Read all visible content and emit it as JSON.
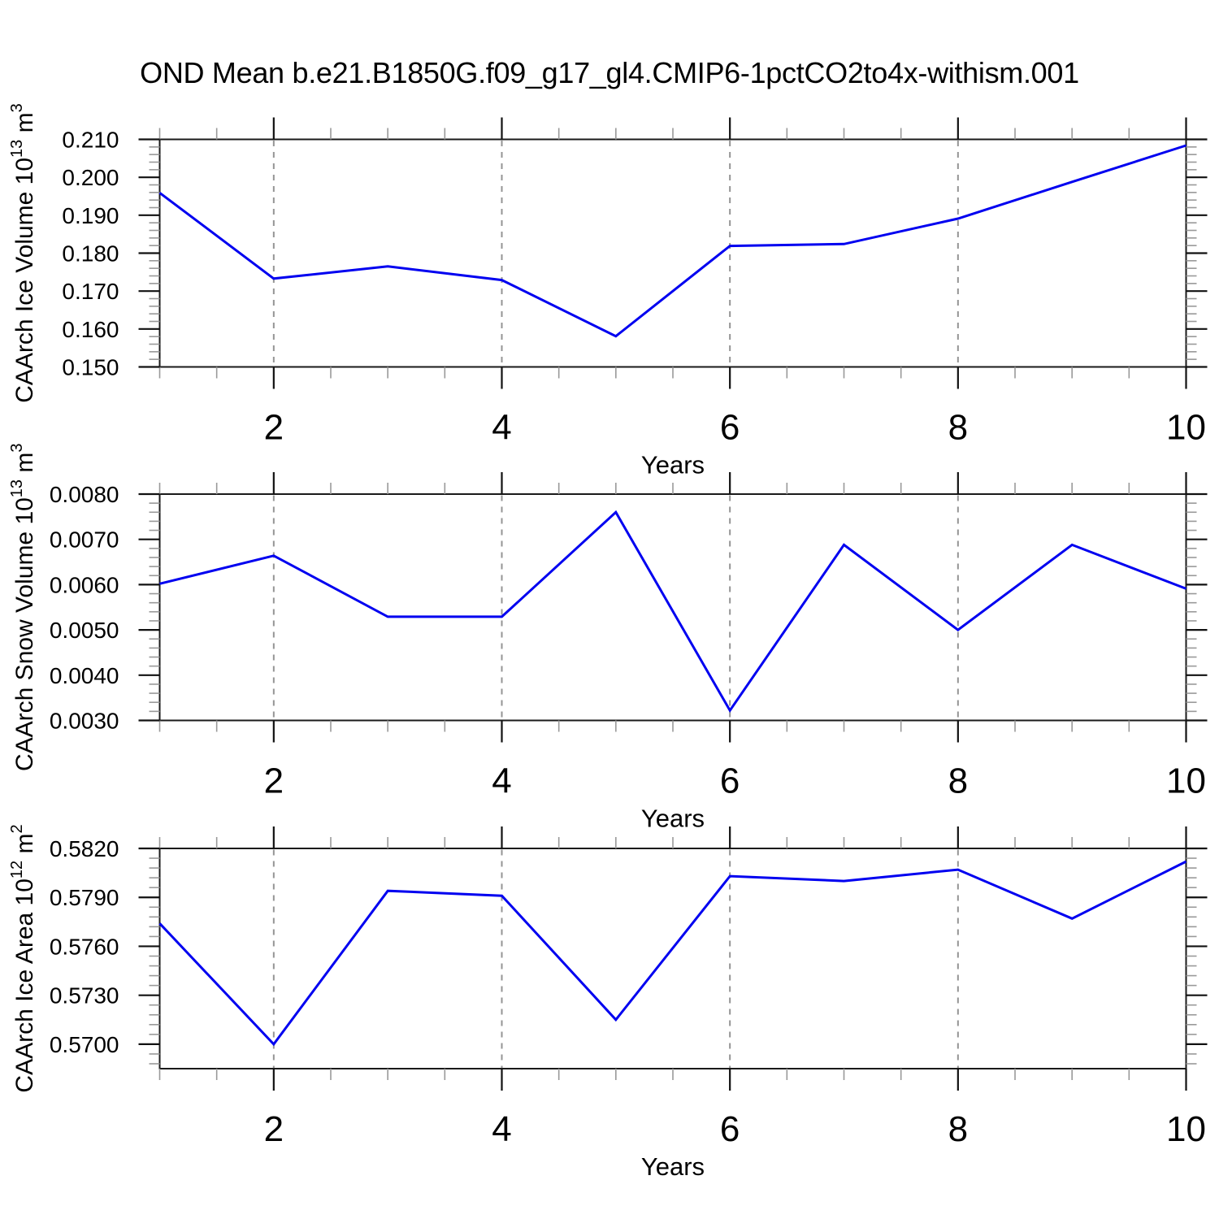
{
  "title": "OND Mean b.e21.B1850G.f09_g17_gl4.CMIP6-1pctCO2to4x-withism.001",
  "colors": {
    "line": "#0000f0",
    "grid": "#949494",
    "axis": "#1a1a1a",
    "tick_major": "#111111",
    "tick_minor": "#999999",
    "text": "#000000",
    "background": "#ffffff"
  },
  "chart_data": [
    {
      "type": "line",
      "name": "ice-volume",
      "xlabel": "Years",
      "ylabel": "CAArch Ice Volume 10^13^ m^3^",
      "x": [
        1,
        2,
        3,
        4,
        5,
        6,
        7,
        8,
        9,
        10
      ],
      "values": [
        0.1959,
        0.1733,
        0.1765,
        0.1729,
        0.1581,
        0.1819,
        0.1824,
        0.1891,
        0.1988,
        0.2084
      ],
      "xlim": [
        1,
        10
      ],
      "ylim": [
        0.15,
        0.21
      ],
      "xtick_values": [
        2,
        4,
        6,
        8,
        10
      ],
      "xtick_labels": [
        "2",
        "4",
        "6",
        "8",
        "10"
      ],
      "xtick_minor_step": 0.5,
      "ytick_values": [
        0.21,
        0.2,
        0.19,
        0.18,
        0.17,
        0.16,
        0.15
      ],
      "ytick_labels": [
        "0.210",
        "0.200",
        "0.190",
        "0.180",
        "0.170",
        "0.160",
        "0.150"
      ],
      "ytick_minor_step": 0.002,
      "gridlines_x": [
        2,
        4,
        6,
        8
      ],
      "grid": "vertical-dashed",
      "legend": "none"
    },
    {
      "type": "line",
      "name": "snow-volume",
      "xlabel": "Years",
      "ylabel": "CAArch Snow Volume 10^13^ m^3^",
      "x": [
        1,
        2,
        3,
        4,
        5,
        6,
        7,
        8,
        9,
        10
      ],
      "values": [
        0.00602,
        0.00664,
        0.00529,
        0.00529,
        0.0076,
        0.00322,
        0.00688,
        0.005,
        0.00688,
        0.00591
      ],
      "xlim": [
        1,
        10
      ],
      "ylim": [
        0.003,
        0.008
      ],
      "xtick_values": [
        2,
        4,
        6,
        8,
        10
      ],
      "xtick_labels": [
        "2",
        "4",
        "6",
        "8",
        "10"
      ],
      "xtick_minor_step": 0.5,
      "ytick_values": [
        0.008,
        0.007,
        0.006,
        0.005,
        0.004,
        0.003
      ],
      "ytick_labels": [
        "0.0080",
        "0.0070",
        "0.0060",
        "0.0050",
        "0.0040",
        "0.0030"
      ],
      "ytick_minor_step": 0.0002,
      "gridlines_x": [
        2,
        4,
        6,
        8
      ],
      "grid": "vertical-dashed",
      "legend": "none"
    },
    {
      "type": "line",
      "name": "ice-area",
      "xlabel": "Years",
      "ylabel": "CAArch Ice Area 10^12^ m^2^",
      "x": [
        1,
        2,
        3,
        4,
        5,
        6,
        7,
        8,
        9,
        10
      ],
      "values": [
        0.5774,
        0.57,
        0.5794,
        0.5791,
        0.5715,
        0.5803,
        0.58,
        0.5807,
        0.5777,
        0.5812
      ],
      "xlim": [
        1,
        10
      ],
      "ylim": [
        0.5685,
        0.582
      ],
      "xtick_values": [
        2,
        4,
        6,
        8,
        10
      ],
      "xtick_labels": [
        "2",
        "4",
        "6",
        "8",
        "10"
      ],
      "xtick_minor_step": 0.5,
      "ytick_values": [
        0.582,
        0.579,
        0.576,
        0.573,
        0.57
      ],
      "ytick_labels": [
        "0.5820",
        "0.5790",
        "0.5760",
        "0.5730",
        "0.5700"
      ],
      "ytick_minor_step": 0.0006,
      "gridlines_x": [
        2,
        4,
        6,
        8
      ],
      "grid": "vertical-dashed",
      "legend": "none"
    }
  ]
}
